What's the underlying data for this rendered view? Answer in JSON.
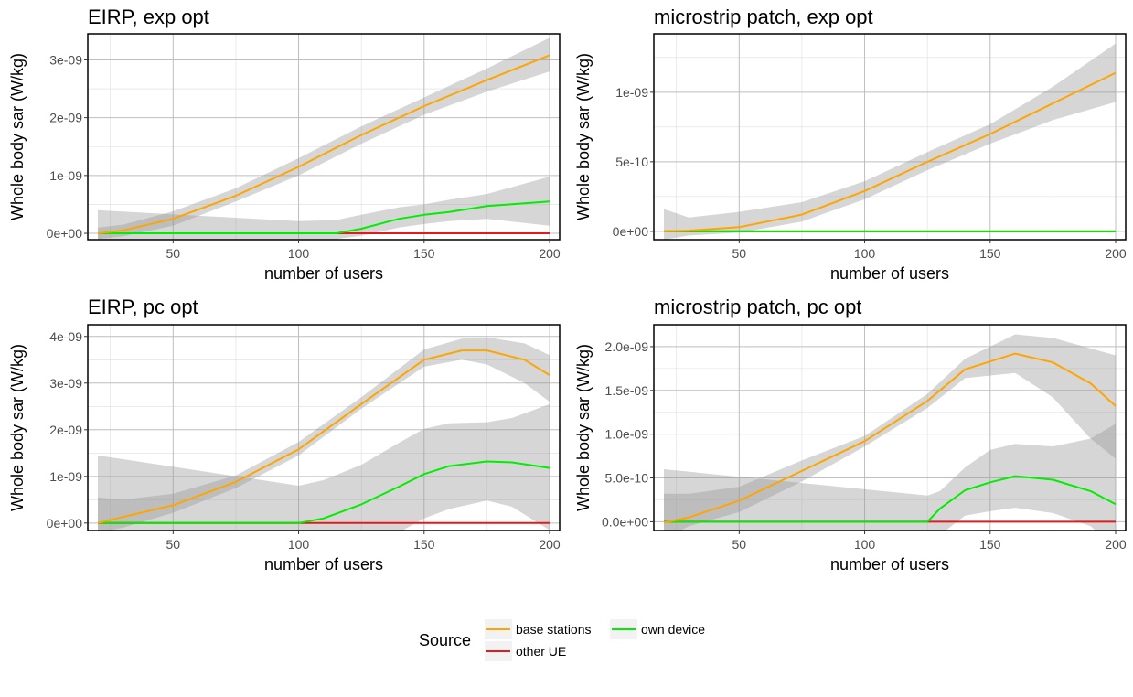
{
  "chart_data": [
    {
      "type": "line",
      "title": "EIRP, exp opt",
      "xlabel": "number of users",
      "ylabel": "Whole body sar (W/kg)",
      "xlim": [
        16,
        204
      ],
      "ylim": [
        -1.1e-10,
        3.45e-09
      ],
      "xticks": [
        50,
        100,
        150,
        200
      ],
      "xtick_labels": [
        "50",
        "100",
        "150",
        "200"
      ],
      "yticks": [
        0,
        1e-09,
        2e-09,
        3e-09
      ],
      "ytick_labels": [
        "0e+00",
        "1e-09",
        "2e-09",
        "3e-09"
      ],
      "series": [
        {
          "name": "base stations",
          "color": "#FFA500",
          "x": [
            20,
            30,
            50,
            75,
            100,
            125,
            150,
            175,
            200
          ],
          "y": [
            0.0,
            5e-11,
            2.5e-10,
            6.5e-10,
            1.15e-09,
            1.7e-09,
            2.2e-09,
            2.65e-09,
            3.08e-09
          ],
          "band_lo": [
            -1e-10,
            -5e-11,
            1.3e-10,
            5.5e-10,
            1e-09,
            1.55e-09,
            2.05e-09,
            2.45e-09,
            2.8e-09
          ],
          "band_hi": [
            1e-10,
            1.5e-10,
            3.8e-10,
            7.8e-10,
            1.3e-09,
            1.85e-09,
            2.35e-09,
            2.85e-09,
            3.38e-09
          ]
        },
        {
          "name": "own device",
          "color": "#00EE00",
          "x": [
            20,
            100,
            115,
            125,
            140,
            150,
            160,
            175,
            200
          ],
          "y": [
            0.0,
            0.0,
            0.0,
            8e-11,
            2.5e-10,
            3.2e-10,
            3.7e-10,
            4.7e-10,
            5.5e-10
          ],
          "band_lo": [
            -1.8e-10,
            -1e-10,
            -1e-10,
            -4e-11,
            1e-10,
            1.6e-10,
            2.1e-10,
            2.5e-10,
            1.3e-10
          ],
          "band_hi": [
            4e-10,
            2.1e-10,
            2.3e-10,
            3.2e-10,
            4.5e-10,
            5e-10,
            5.8e-10,
            6.8e-10,
            9.8e-10
          ]
        },
        {
          "name": "other UE",
          "color": "#E41A1C",
          "x": [
            20,
            200
          ],
          "y": [
            0,
            0
          ]
        }
      ]
    },
    {
      "type": "line",
      "title": "microstrip patch, exp opt",
      "xlabel": "number of users",
      "ylabel": "Whole body sar (W/kg)",
      "xlim": [
        16,
        204
      ],
      "ylim": [
        -6e-11,
        1.42e-09
      ],
      "xticks": [
        50,
        100,
        150,
        200
      ],
      "xtick_labels": [
        "50",
        "100",
        "150",
        "200"
      ],
      "yticks": [
        0,
        5e-10,
        1e-09
      ],
      "ytick_labels": [
        "0e+00",
        "5e-10",
        "1e-09"
      ],
      "series": [
        {
          "name": "base stations",
          "color": "#FFA500",
          "x": [
            20,
            30,
            50,
            75,
            100,
            125,
            150,
            175,
            200
          ],
          "y": [
            0.0,
            5e-12,
            3e-11,
            1.2e-10,
            2.9e-10,
            5e-10,
            7e-10,
            9.2e-10,
            1.14e-09
          ],
          "band_lo": [
            -6e-11,
            -3e-11,
            -1e-11,
            7e-11,
            2.3e-10,
            4.4e-10,
            6.3e-10,
            8e-10,
            9.3e-10
          ],
          "band_hi": [
            1.6e-10,
            1e-10,
            1.4e-10,
            2.1e-10,
            3.6e-10,
            5.7e-10,
            7.7e-10,
            1.04e-09,
            1.35e-09
          ]
        },
        {
          "name": "own device",
          "color": "#00EE00",
          "x": [
            20,
            200
          ],
          "y": [
            0,
            0
          ]
        },
        {
          "name": "other UE",
          "color": "#E41A1C",
          "x": [
            20,
            200
          ],
          "y": [
            0,
            0
          ]
        }
      ]
    },
    {
      "type": "line",
      "title": "EIRP, pc opt",
      "xlabel": "number of users",
      "ylabel": "Whole body sar (W/kg)",
      "xlim": [
        16,
        204
      ],
      "ylim": [
        -1.6e-10,
        4.25e-09
      ],
      "xticks": [
        50,
        100,
        150,
        200
      ],
      "xtick_labels": [
        "50",
        "100",
        "150",
        "200"
      ],
      "yticks": [
        0,
        1e-09,
        2e-09,
        3e-09,
        4e-09
      ],
      "ytick_labels": [
        "0e+00",
        "1e-09",
        "2e-09",
        "3e-09",
        "4e-09"
      ],
      "series": [
        {
          "name": "base stations",
          "color": "#FFA500",
          "x": [
            20,
            30,
            50,
            75,
            100,
            125,
            150,
            165,
            175,
            190,
            200
          ],
          "y": [
            0.0,
            1.3e-10,
            3.8e-10,
            8.8e-10,
            1.58e-09,
            2.55e-09,
            3.5e-09,
            3.7e-09,
            3.7e-09,
            3.5e-09,
            3.17e-09
          ],
          "band_lo": [
            -2e-10,
            -1e-10,
            2.2e-10,
            7.5e-10,
            1.45e-09,
            2.45e-09,
            3.35e-09,
            3.5e-09,
            3.4e-09,
            3e-09,
            2.6e-09
          ],
          "band_hi": [
            5.5e-10,
            5e-10,
            6.3e-10,
            1.02e-09,
            1.74e-09,
            2.7e-09,
            3.72e-09,
            3.95e-09,
            3.98e-09,
            3.85e-09,
            3.6e-09
          ]
        },
        {
          "name": "own device",
          "color": "#00EE00",
          "x": [
            20,
            100,
            110,
            125,
            140,
            150,
            160,
            175,
            185,
            200
          ],
          "y": [
            0.0,
            0.0,
            1e-10,
            4e-10,
            7.8e-10,
            1.05e-09,
            1.22e-09,
            1.32e-09,
            1.3e-09,
            1.18e-09
          ],
          "band_lo": [
            -1.45e-09,
            -7.5e-10,
            -6.5e-10,
            -4.5e-10,
            -2e-10,
            1e-10,
            3e-10,
            4.8e-10,
            3.5e-10,
            -1.5e-10
          ],
          "band_hi": [
            1.45e-09,
            8e-10,
            9.2e-10,
            1.25e-09,
            1.72e-09,
            2.02e-09,
            2.14e-09,
            2.16e-09,
            2.25e-09,
            2.55e-09
          ]
        },
        {
          "name": "other UE",
          "color": "#E41A1C",
          "x": [
            20,
            200
          ],
          "y": [
            0,
            0
          ]
        }
      ]
    },
    {
      "type": "line",
      "title": "microstrip patch, pc opt",
      "xlabel": "number of users",
      "ylabel": "Whole body sar (W/kg)",
      "xlim": [
        16,
        204
      ],
      "ylim": [
        -1e-10,
        2.25e-09
      ],
      "xticks": [
        50,
        100,
        150,
        200
      ],
      "xtick_labels": [
        "50",
        "100",
        "150",
        "200"
      ],
      "yticks": [
        0,
        5e-10,
        1e-09,
        1.5e-09,
        2e-09
      ],
      "ytick_labels": [
        "0.0e+00",
        "5.0e-10",
        "1.0e-09",
        "1.5e-09",
        "2.0e-09"
      ],
      "series": [
        {
          "name": "base stations",
          "color": "#FFA500",
          "x": [
            20,
            30,
            50,
            75,
            100,
            125,
            140,
            160,
            175,
            190,
            200
          ],
          "y": [
            -1e-11,
            5e-11,
            2.4e-10,
            5.8e-10,
            9.2e-10,
            1.38e-09,
            1.74e-09,
            1.92e-09,
            1.82e-09,
            1.58e-09,
            1.32e-09
          ],
          "band_lo": [
            -2e-10,
            -5e-11,
            1.1e-10,
            4.6e-10,
            8.6e-10,
            1.3e-09,
            1.64e-09,
            1.7e-09,
            1.42e-09,
            9.5e-10,
            7.2e-10
          ],
          "band_hi": [
            3.2e-10,
            3.2e-10,
            4e-10,
            7e-10,
            9.8e-10,
            1.46e-09,
            1.86e-09,
            2.14e-09,
            2.1e-09,
            1.98e-09,
            1.9e-09
          ]
        },
        {
          "name": "own device",
          "color": "#00EE00",
          "x": [
            20,
            125,
            130,
            140,
            150,
            160,
            175,
            190,
            200
          ],
          "y": [
            0.0,
            0.0,
            1.5e-10,
            3.6e-10,
            4.5e-10,
            5.2e-10,
            4.8e-10,
            3.5e-10,
            2e-10
          ],
          "band_lo": [
            -6e-10,
            -3e-10,
            -1.5e-10,
            7e-11,
            1.2e-10,
            1.6e-10,
            1e-10,
            -5e-11,
            -3e-10
          ],
          "band_hi": [
            6e-10,
            3e-10,
            3.5e-10,
            6.2e-10,
            8.2e-10,
            8.9e-10,
            8.6e-10,
            9.5e-10,
            1.12e-09
          ]
        },
        {
          "name": "other UE",
          "color": "#E41A1C",
          "x": [
            20,
            200
          ],
          "y": [
            0,
            0
          ]
        }
      ]
    }
  ],
  "legend": {
    "title": "Source",
    "placement": "bottom",
    "entries": [
      {
        "label": "base stations",
        "color": "#FFA500"
      },
      {
        "label": "own device",
        "color": "#00EE00"
      },
      {
        "label": "other UE",
        "color": "#E41A1C"
      }
    ]
  },
  "colors": {
    "band": "#999999",
    "grid": "#bebebe"
  }
}
